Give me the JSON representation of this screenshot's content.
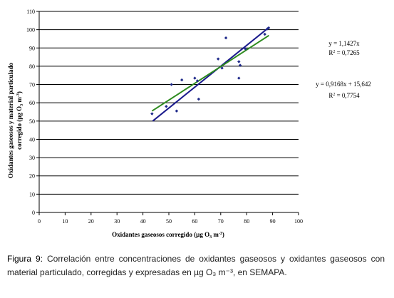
{
  "chart_data": {
    "type": "scatter",
    "xlabel_prefix": "Oxidantes gaseosos corregido (µg O",
    "xlabel_sub": "3",
    "xlabel_mid": " m",
    "xlabel_sup": "-3",
    "xlabel_suffix": ")",
    "ylabel_line1": "Oxidantes gaseosos y material particulado",
    "ylabel_line2_prefix": "corregido (µg O",
    "ylabel_line2_sub": "3",
    "ylabel_line2_mid": " m",
    "ylabel_line2_sup": "-3",
    "ylabel_line2_suffix": ")",
    "xlim": [
      0,
      100
    ],
    "ylim": [
      0,
      110
    ],
    "xticks": [
      0,
      10,
      20,
      30,
      40,
      50,
      60,
      70,
      80,
      90,
      100
    ],
    "yticks": [
      0,
      10,
      20,
      30,
      40,
      50,
      60,
      70,
      80,
      90,
      100,
      110
    ],
    "grid": "horizontal",
    "points": [
      {
        "x": 43.5,
        "y": 54
      },
      {
        "x": 49,
        "y": 58
      },
      {
        "x": 51,
        "y": 70
      },
      {
        "x": 53,
        "y": 55.5
      },
      {
        "x": 55,
        "y": 72.5
      },
      {
        "x": 60,
        "y": 73.5
      },
      {
        "x": 61,
        "y": 72
      },
      {
        "x": 61.5,
        "y": 62
      },
      {
        "x": 69,
        "y": 84
      },
      {
        "x": 70.5,
        "y": 79
      },
      {
        "x": 72,
        "y": 95.5
      },
      {
        "x": 77,
        "y": 73.5
      },
      {
        "x": 77,
        "y": 82.5
      },
      {
        "x": 77.5,
        "y": 80.5
      },
      {
        "x": 79.5,
        "y": 89.5
      },
      {
        "x": 87,
        "y": 97.5
      },
      {
        "x": 88,
        "y": 100.5
      },
      {
        "x": 88.5,
        "y": 101
      }
    ],
    "point_color": "#1f2a8a",
    "trendlines": [
      {
        "type": "linear-through-origin",
        "slope": 1.1427,
        "intercept": 0,
        "x_range": [
          43.8,
          88.6
        ],
        "color": "#1a1a8c",
        "eq": "y = 1,1427x",
        "r2_value": " = 0,7265"
      },
      {
        "type": "linear",
        "slope": 0.9168,
        "intercept": 15.642,
        "x_range": [
          43.5,
          88.6
        ],
        "color": "#2e8b1f",
        "eq": "y = 0,9168x + 15,642",
        "r2_value": " = 0,7754"
      }
    ],
    "r2_base": "R",
    "r2_sup": "2"
  },
  "caption": {
    "label": "Figura 9:",
    "text": " Correlación entre concentraciones de oxidantes gaseosos y oxidantes gaseosos con material particulado, corregidas y expresadas en µg O₃ m⁻³, en SEMAPA."
  }
}
